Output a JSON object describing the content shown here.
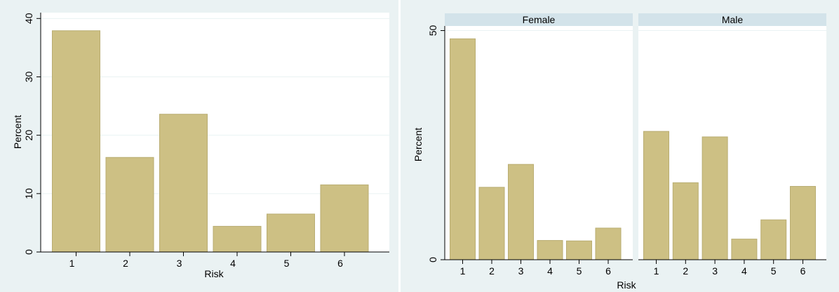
{
  "colors": {
    "outer_bg": "#eaf2f3",
    "plot_bg": "#ffffff",
    "bar_fill": "#cdc084",
    "bar_stroke": "#b9ad72",
    "grid": "#eaf2f3",
    "strip_bg": "#d3e3ea",
    "axis": "#000000"
  },
  "chart_data": [
    {
      "type": "bar",
      "title": "",
      "xlabel": "Risk",
      "ylabel": "Percent",
      "categories": [
        "1",
        "2",
        "3",
        "4",
        "5",
        "6"
      ],
      "values": [
        37.9,
        16.2,
        23.6,
        4.4,
        6.5,
        11.5
      ],
      "ylim": [
        0,
        41
      ],
      "yticks": [
        0,
        10,
        20,
        30,
        40
      ],
      "grid": true
    },
    {
      "type": "bar",
      "xlabel": "Risk",
      "ylabel": "Percent",
      "ylim": [
        0,
        51
      ],
      "yticks": [
        0,
        50
      ],
      "grid": true,
      "panels": [
        {
          "label": "Female",
          "categories": [
            "1",
            "2",
            "3",
            "4",
            "5",
            "6"
          ],
          "values": [
            48.2,
            15.8,
            20.8,
            4.2,
            4.1,
            6.9
          ]
        },
        {
          "label": "Male",
          "categories": [
            "1",
            "2",
            "3",
            "4",
            "5",
            "6"
          ],
          "values": [
            28.0,
            16.8,
            26.8,
            4.5,
            8.7,
            16.0
          ]
        }
      ]
    }
  ]
}
